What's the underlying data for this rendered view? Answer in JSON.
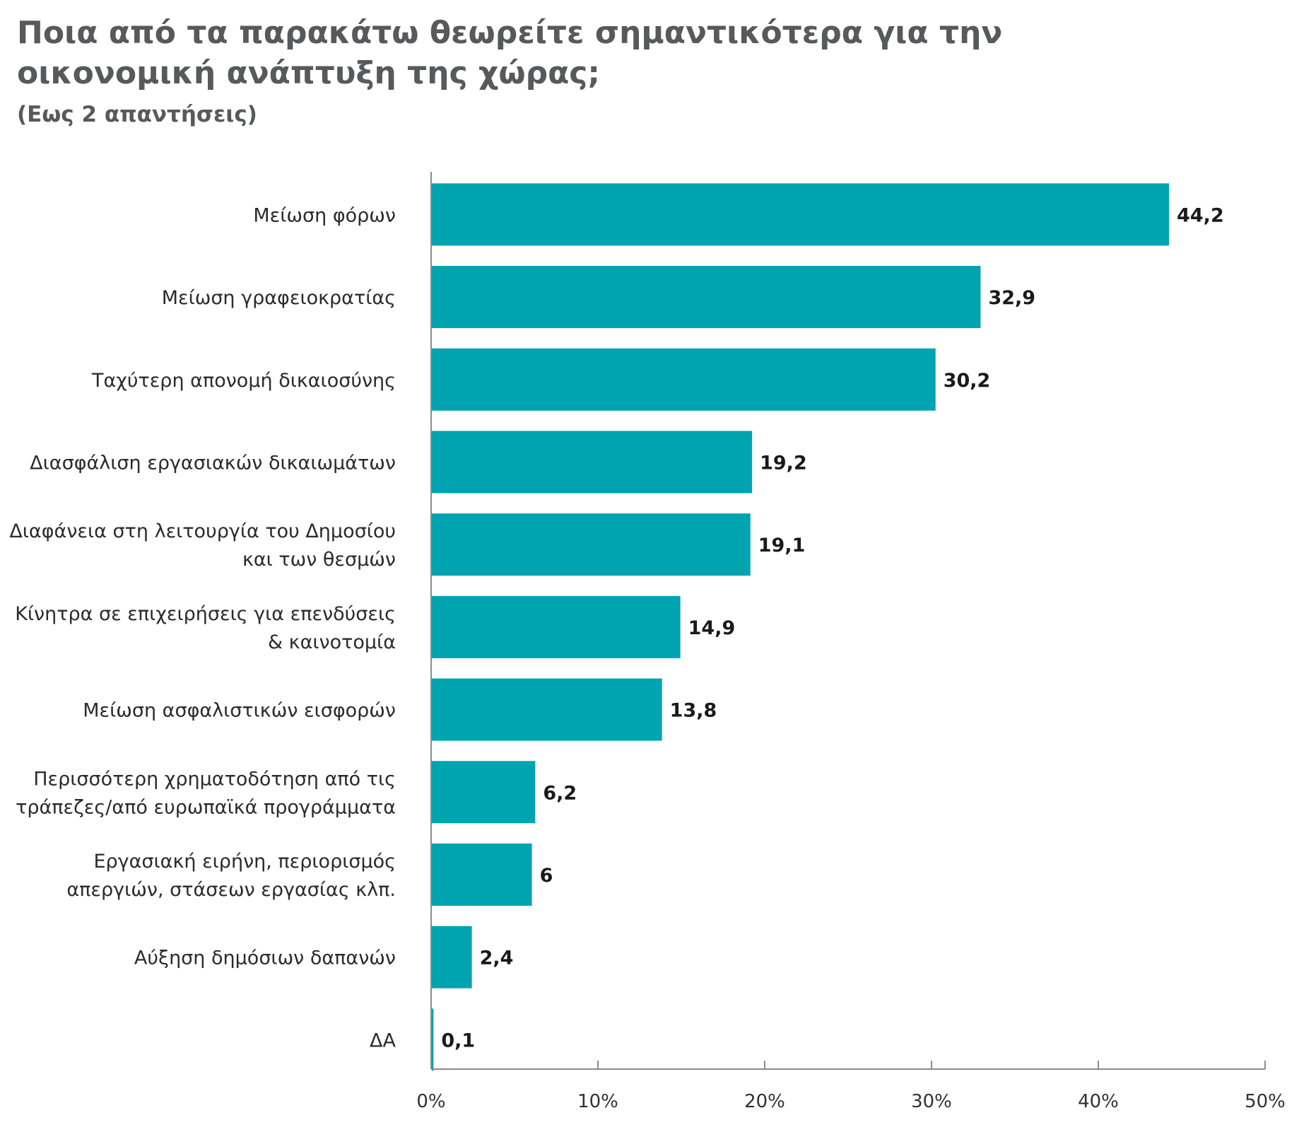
{
  "chart_data": {
    "type": "bar",
    "orientation": "horizontal",
    "title": "Ποια από τα παρακάτω θεωρείτε σημαντικότερα για την οικονομική ανάπτυξη της χώρας;",
    "subtitle": "(Εως 2 απαντήσεις)",
    "categories": [
      [
        "Μείωση φόρων"
      ],
      [
        "Μείωση γραφειοκρατίας"
      ],
      [
        "Ταχύτερη απονομή δικαιοσύνης"
      ],
      [
        "Διασφάλιση εργασιακών δικαιωμάτων"
      ],
      [
        "Διαφάνεια στη λειτουργία του Δημοσίου",
        "και των θεσμών"
      ],
      [
        "Κίνητρα σε επιχειρήσεις για επενδύσεις",
        "& καινοτομία"
      ],
      [
        "Μείωση ασφαλιστικών εισφορών"
      ],
      [
        "Περισσότερη χρηματοδότηση από τις",
        "τράπεζες/από ευρωπαϊκά προγράμματα"
      ],
      [
        "Εργασιακή ειρήνη, περιορισμός",
        "απεργιών, στάσεων εργασίας κλπ."
      ],
      [
        "Αύξηση δημόσιων δαπανών"
      ],
      [
        "ΔΑ"
      ]
    ],
    "values": [
      44.2,
      32.9,
      30.2,
      19.2,
      19.1,
      14.9,
      13.8,
      6.2,
      6,
      2.4,
      0.1
    ],
    "value_labels": [
      "44,2",
      "32,9",
      "30,2",
      "19,2",
      "19,1",
      "14,9",
      "13,8",
      "6,2",
      "6",
      "2,4",
      "0,1"
    ],
    "xlim": [
      0,
      50
    ],
    "x_ticks": [
      "0%",
      "10%",
      "20%",
      "30%",
      "40%",
      "50%"
    ],
    "grid": false,
    "bar_color": "#00a3b0",
    "axis_color": "#8c8c8c",
    "title_color": "#58595b"
  }
}
